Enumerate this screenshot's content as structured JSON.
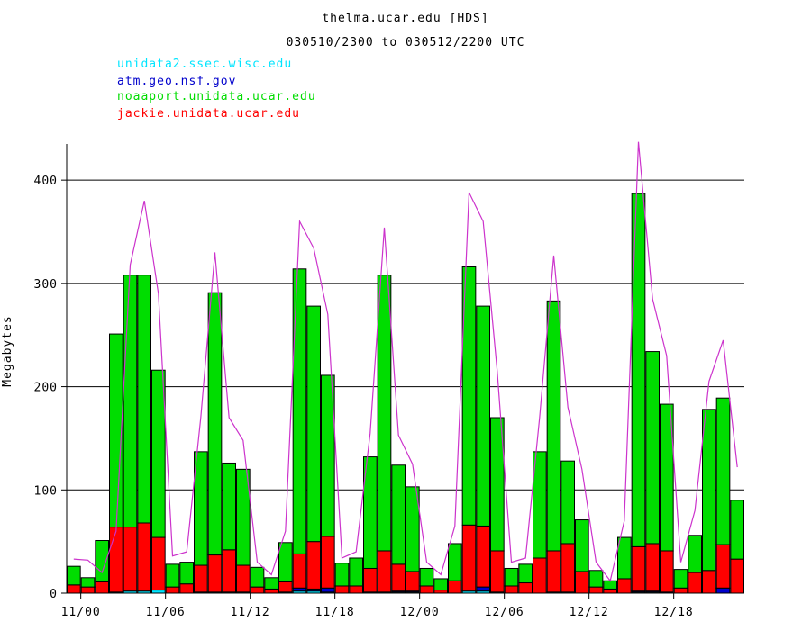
{
  "chart_data": {
    "type": "bar",
    "title": "thelma.ucar.edu [HDS]",
    "subtitle": "030510/2300 to 030512/2200 UTC",
    "ylabel": "Megabytes",
    "ylim": [
      0,
      435
    ],
    "yticks": [
      0,
      100,
      200,
      300,
      400
    ],
    "xtick_labels": [
      "11/00",
      "11/06",
      "11/12",
      "11/18",
      "12/00",
      "12/06",
      "12/12",
      "12/18"
    ],
    "xtick_hours": [
      1,
      7,
      13,
      19,
      25,
      31,
      37,
      43
    ],
    "grid": "horizontal",
    "legend": [
      {
        "name": "unidata2.ssec.wisc.edu",
        "color": "#00e5ff"
      },
      {
        "name": "atm.geo.nsf.gov",
        "color": "#0000cc"
      },
      {
        "name": "noaaport.unidata.ucar.edu",
        "color": "#00dd00"
      },
      {
        "name": "jackie.unidata.ucar.edu",
        "color": "#ff0000"
      }
    ],
    "total_line": {
      "color": "#cc33cc",
      "values": [
        33,
        32,
        20,
        60,
        318,
        380,
        290,
        36,
        40,
        170,
        330,
        170,
        148,
        30,
        18,
        60,
        360,
        334,
        270,
        34,
        40,
        155,
        354,
        153,
        125,
        30,
        18,
        65,
        388,
        360,
        215,
        30,
        34,
        170,
        327,
        180,
        120,
        30,
        12,
        70,
        437,
        285,
        230,
        30,
        80,
        205,
        245,
        122
      ]
    },
    "series": [
      {
        "name": "unidata2.ssec.wisc.edu",
        "color": "#00e5ff",
        "values": [
          0,
          0,
          0,
          1,
          2,
          2,
          3,
          0,
          0,
          1,
          1,
          1,
          1,
          0,
          0,
          1,
          2,
          2,
          1,
          0,
          0,
          1,
          1,
          1,
          1,
          0,
          0,
          0,
          2,
          2,
          1,
          0,
          0,
          0,
          1,
          1,
          0,
          0,
          0,
          0,
          1,
          1,
          0,
          0,
          0,
          0,
          0,
          0
        ]
      },
      {
        "name": "atm.geo.nsf.gov",
        "color": "#0000cc",
        "values": [
          0,
          0,
          0,
          0,
          0,
          0,
          0,
          0,
          0,
          0,
          0,
          0,
          0,
          0,
          0,
          0,
          3,
          2,
          4,
          0,
          0,
          0,
          0,
          1,
          1,
          0,
          0,
          0,
          0,
          4,
          0,
          0,
          0,
          0,
          0,
          0,
          0,
          0,
          0,
          0,
          1,
          1,
          1,
          0,
          0,
          0,
          5,
          0
        ]
      },
      {
        "name": "noaaport.unidata.ucar.edu",
        "color": "#00dd00",
        "values": [
          18,
          9,
          40,
          187,
          244,
          240,
          162,
          22,
          21,
          110,
          254,
          84,
          93,
          19,
          11,
          38,
          276,
          228,
          156,
          22,
          27,
          108,
          267,
          96,
          82,
          17,
          11,
          36,
          250,
          213,
          129,
          17,
          18,
          103,
          242,
          80,
          50,
          16,
          8,
          40,
          342,
          186,
          142,
          18,
          36,
          156,
          142,
          57
        ]
      },
      {
        "name": "jackie.unidata.ucar.edu",
        "color": "#ff0000",
        "values": [
          8,
          6,
          11,
          63,
          62,
          66,
          51,
          6,
          9,
          26,
          36,
          41,
          26,
          6,
          4,
          10,
          33,
          46,
          50,
          7,
          7,
          23,
          40,
          26,
          19,
          7,
          3,
          12,
          64,
          59,
          40,
          7,
          10,
          34,
          40,
          47,
          21,
          6,
          4,
          14,
          43,
          46,
          40,
          5,
          20,
          22,
          42,
          33
        ]
      }
    ]
  }
}
